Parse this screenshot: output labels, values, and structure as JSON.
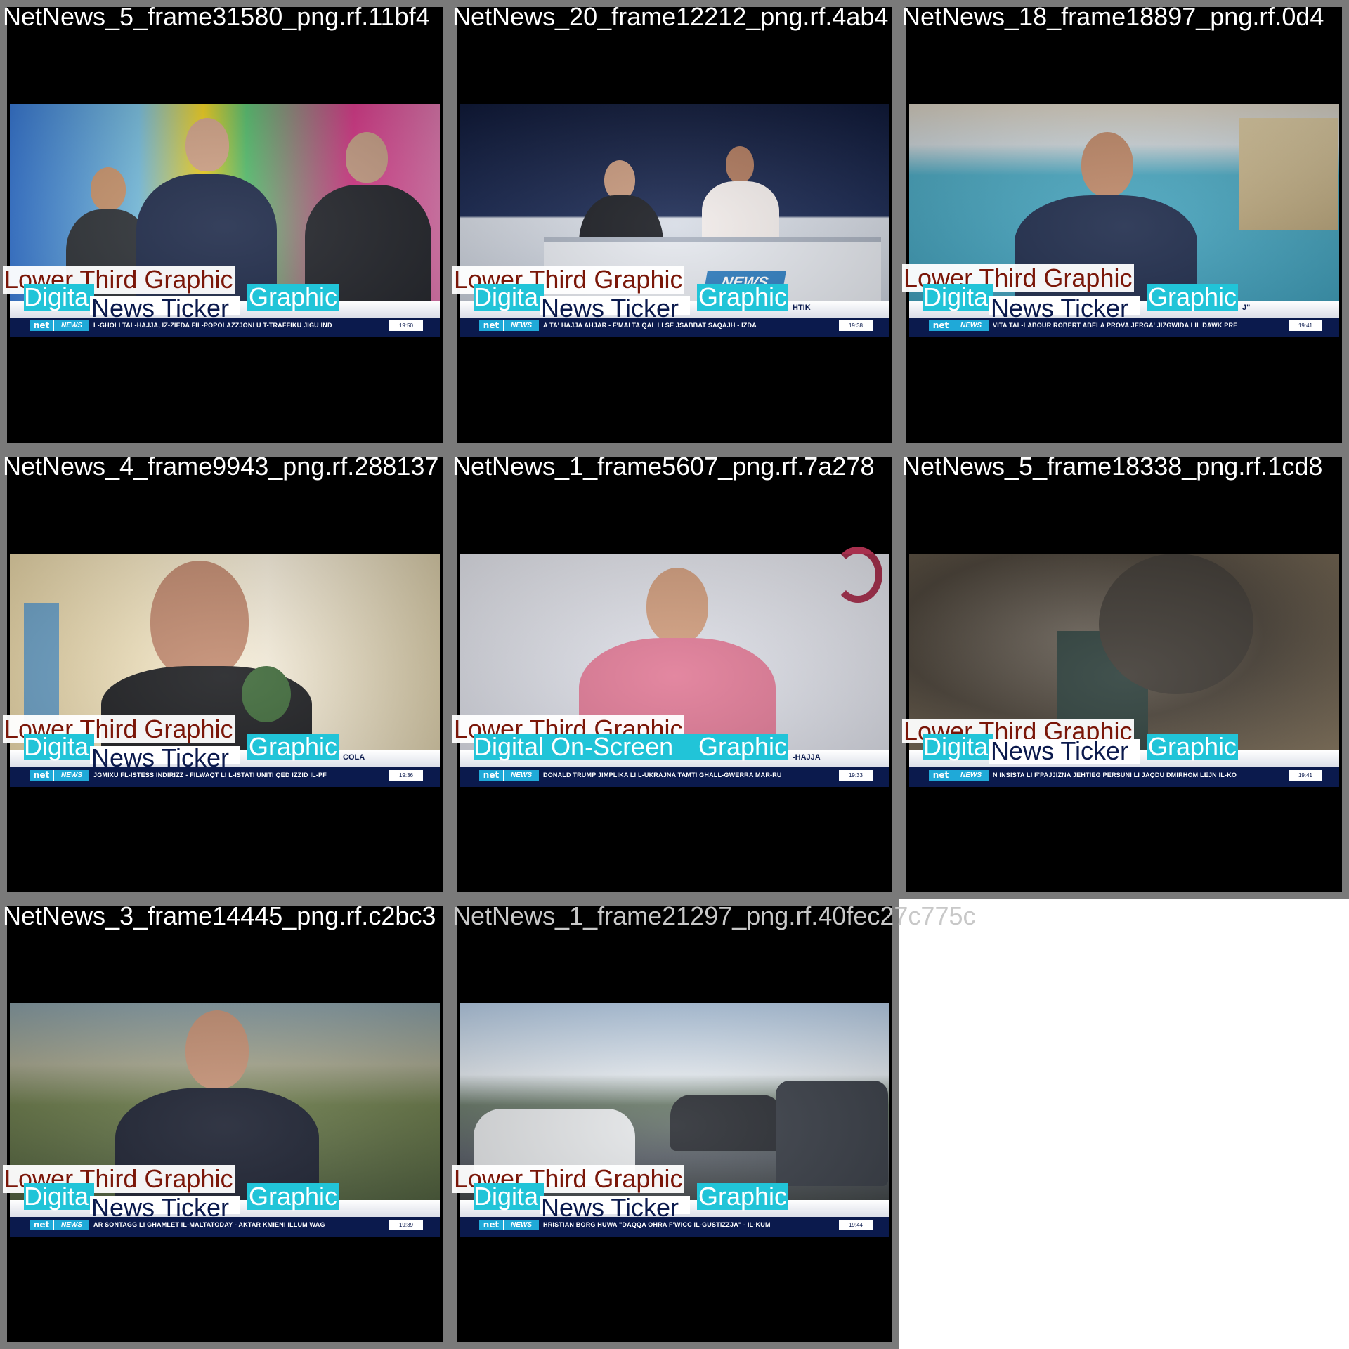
{
  "tiles": [
    {
      "title": "NetNews_5_frame31580_png.rf.11bf4",
      "lower_third": "Lower Third Graphic",
      "digital": "Digita",
      "news_ticker": "News Ticker",
      "graphic": "Graphic",
      "ticker": "L-GHOLI TAL-HAJJA, IZ-ZIEDA FIL-POPOLAZZJONI U T-TRAFFIKU JIGU IND",
      "time": "19:50",
      "extra": "",
      "scene_colors": [
        "#3a7bd8",
        "#f0d020",
        "#d83a8a"
      ]
    },
    {
      "title": "NetNews_20_frame12212_png.rf.4ab4",
      "lower_third": "Lower Third Graphic",
      "digital": "Digita",
      "news_ticker": "News Ticker",
      "graphic": "Graphic",
      "ticker": "A TA' HAJJA AHJAR      -      F'MALTA QAL LI SE JSABBAT SAQAJH - IZDA",
      "time": "19:38",
      "extra": "HTIK",
      "overlay_logo": "NEWS",
      "scene_colors": [
        "#1b2a54",
        "#d8dde6",
        "#a9b2c2"
      ]
    },
    {
      "title": "NetNews_18_frame18897_png.rf.0d4",
      "lower_third": "Lower Third Graphic",
      "digital": "Digita",
      "news_ticker": "News Ticker",
      "graphic": "Graphic",
      "ticker": "VITA TAL-LABOUR ROBERT ABELA PROVA JERGA' JIZGWIDA LIL DAWK PRE",
      "time": "19:41",
      "extra": "J\"",
      "scene_colors": [
        "#4aa7c0",
        "#d9c8a0",
        "#1d2a4a"
      ]
    },
    {
      "title": "NetNews_4_frame9943_png.rf.288137",
      "lower_third": "Lower Third Graphic",
      "digital": "Digita",
      "news_ticker": "News Ticker",
      "graphic": "Graphic",
      "ticker": "JGMIXU FL-ISTESS INDIRIZZ   -   FILWAQT LI L-ISTATI UNITI QED IZZID IL-PF",
      "time": "19:36",
      "extra": "COLA",
      "scene_colors": [
        "#e8d6a8",
        "#6fa4c9",
        "#2a2a2a"
      ]
    },
    {
      "title": "NetNews_1_frame5607_png.rf.7a278",
      "lower_third": "Lower Third Graphic",
      "digital": "Digital On-Screen",
      "news_ticker": "",
      "graphic": "Graphic",
      "ticker": "DONALD TRUMP JIMPLIKA LI L-UKRAJNA TAMTI GHALL-GWERRA MAR-RU",
      "time": "19:33",
      "extra": "-HAJJA",
      "scene_colors": [
        "#d9dbe4",
        "#e07a96",
        "#a8304e"
      ]
    },
    {
      "title": "NetNews_5_frame18338_png.rf.1cd8",
      "lower_third": "Lower Third Graphic",
      "digital": "Digita",
      "news_ticker": "News Ticker",
      "graphic": "Graphic",
      "ticker": "N INSISTA LI F'PAJJIZNA JEHTIEG PERSUNI LI JAQDU DMIRHOM LEJN IL-KO",
      "time": "19:41",
      "extra": "",
      "scene_colors": [
        "#5a5248",
        "#2c3e3a",
        "#8a7a62"
      ]
    },
    {
      "title": "NetNews_3_frame14445_png.rf.c2bc3",
      "lower_third": "Lower Third Graphic",
      "digital": "Digita",
      "news_ticker": "News Ticker",
      "graphic": "Graphic",
      "ticker": "AR SONTAGG LI GHAMLET IL-MALTATODAY   -   AKTAR KMIENI ILLUM WAG",
      "time": "19:39",
      "extra": "",
      "scene_colors": [
        "#8aa0a8",
        "#4a5a3a",
        "#1b2030"
      ]
    },
    {
      "title": "NetNews_1_frame21297_png.rf.40fec27c775c",
      "lower_third": "Lower Third Graphic",
      "digital": "Digita",
      "news_ticker": "News Ticker",
      "graphic": "Graphic",
      "ticker": "HRISTIAN BORG HUWA \"DAQQA OHRA F'WICC IL-GUSTIZZJA\"   -   IL-KUM",
      "time": "19:44",
      "extra": "",
      "scene_colors": [
        "#b8cfe8",
        "#5a6068",
        "#3a3f40"
      ]
    }
  ]
}
